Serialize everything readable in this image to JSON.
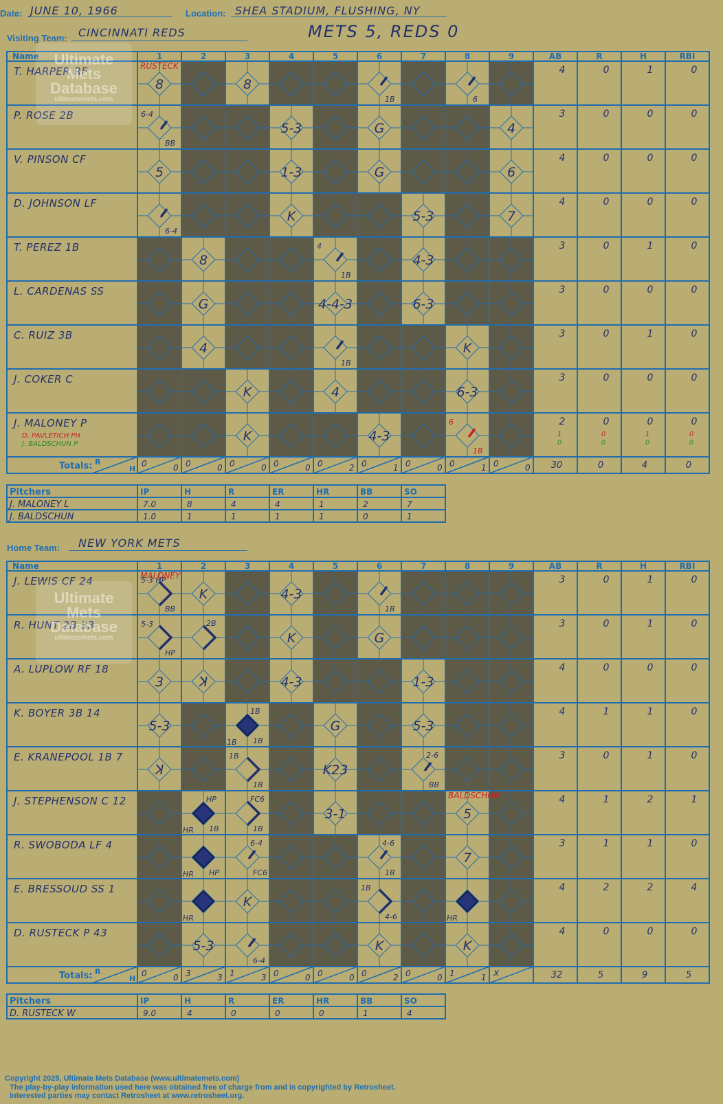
{
  "header": {
    "date_label": "Date:",
    "date": "JUNE 10, 1966",
    "location_label": "Location:",
    "location": "SHEA STADIUM, FLUSHING, NY",
    "visiting_label": "Visiting Team:",
    "visiting_team": "CINCINNATI REDS",
    "home_label": "Home Team:",
    "home_team": "NEW YORK METS",
    "result": "METS 5, REDS 0"
  },
  "grid_headers": {
    "name": "Name",
    "innings": [
      "1",
      "2",
      "3",
      "4",
      "5",
      "6",
      "7",
      "8",
      "9"
    ],
    "ab": "AB",
    "r": "R",
    "h": "H",
    "rbi": "RBI",
    "totals": "Totals:",
    "r_small": "R",
    "h_small": "H"
  },
  "pitcher_headers": {
    "title": "Pitchers",
    "cols": [
      "IP",
      "H",
      "R",
      "ER",
      "HR",
      "BB",
      "SO"
    ]
  },
  "visitors": {
    "players": [
      {
        "name": "T. HARPER RF",
        "stats": [
          "4",
          "0",
          "1",
          "0"
        ]
      },
      {
        "name": "P. ROSE 2B",
        "stats": [
          "3",
          "0",
          "0",
          "0"
        ]
      },
      {
        "name": "V. PINSON CF",
        "stats": [
          "4",
          "0",
          "0",
          "0"
        ]
      },
      {
        "name": "D. JOHNSON LF",
        "stats": [
          "4",
          "0",
          "0",
          "0"
        ]
      },
      {
        "name": "T. PEREZ 1B",
        "stats": [
          "3",
          "0",
          "1",
          "0"
        ]
      },
      {
        "name": "L. CARDENAS SS",
        "stats": [
          "3",
          "0",
          "0",
          "0"
        ]
      },
      {
        "name": "C. RUIZ 3B",
        "stats": [
          "3",
          "0",
          "1",
          "0"
        ]
      },
      {
        "name": "J. COKER C",
        "stats": [
          "3",
          "0",
          "0",
          "0"
        ]
      },
      {
        "name": "J. MALONEY P",
        "stats": [
          "2",
          "0",
          "0",
          "0"
        ],
        "subs": [
          {
            "name": "D. PAVLETICH PH",
            "color": "#c82020",
            "stats": [
              "1",
              "0",
              "1",
              "0"
            ]
          },
          {
            "name": "J. BALDSCHUN P",
            "color": "#2a8a2a",
            "stats": [
              "0",
              "0",
              "0",
              "0"
            ]
          }
        ]
      }
    ],
    "dark": [
      [
        0,
        1,
        0,
        1,
        1,
        0,
        1,
        0,
        1
      ],
      [
        0,
        1,
        1,
        0,
        1,
        0,
        1,
        1,
        0
      ],
      [
        0,
        1,
        1,
        0,
        1,
        0,
        1,
        1,
        0
      ],
      [
        0,
        1,
        1,
        0,
        1,
        1,
        0,
        1,
        0
      ],
      [
        1,
        0,
        1,
        1,
        0,
        1,
        0,
        1,
        1
      ],
      [
        1,
        0,
        1,
        1,
        0,
        1,
        0,
        1,
        1
      ],
      [
        1,
        0,
        1,
        1,
        0,
        1,
        1,
        0,
        1
      ],
      [
        1,
        1,
        0,
        1,
        0,
        1,
        1,
        0,
        1
      ],
      [
        1,
        1,
        0,
        1,
        1,
        0,
        1,
        0,
        1
      ]
    ],
    "plays": [
      {
        "r": 0,
        "c": 0,
        "t": "8"
      },
      {
        "r": 0,
        "c": 2,
        "t": "8"
      },
      {
        "r": 0,
        "c": 5,
        "t": "",
        "slash": true,
        "br": "1B"
      },
      {
        "r": 0,
        "c": 7,
        "t": "",
        "slash": true,
        "br": "6"
      },
      {
        "r": 1,
        "c": 0,
        "t": "",
        "slash": true,
        "tl": "6-4",
        "br": "BB"
      },
      {
        "r": 1,
        "c": 3,
        "t": "5-3"
      },
      {
        "r": 1,
        "c": 5,
        "t": "G"
      },
      {
        "r": 1,
        "c": 8,
        "t": "4"
      },
      {
        "r": 2,
        "c": 0,
        "t": "5"
      },
      {
        "r": 2,
        "c": 3,
        "t": "1-3"
      },
      {
        "r": 2,
        "c": 5,
        "t": "G"
      },
      {
        "r": 2,
        "c": 8,
        "t": "6"
      },
      {
        "r": 3,
        "c": 0,
        "t": "",
        "slash": true,
        "br": "6-4"
      },
      {
        "r": 3,
        "c": 3,
        "t": "K"
      },
      {
        "r": 3,
        "c": 6,
        "t": "5-3"
      },
      {
        "r": 3,
        "c": 8,
        "t": "7"
      },
      {
        "r": 4,
        "c": 1,
        "t": "8"
      },
      {
        "r": 4,
        "c": 4,
        "t": "",
        "slash": true,
        "tl": "4",
        "br": "1B"
      },
      {
        "r": 4,
        "c": 6,
        "t": "4-3"
      },
      {
        "r": 5,
        "c": 1,
        "t": "G"
      },
      {
        "r": 5,
        "c": 4,
        "t": "4-4-3"
      },
      {
        "r": 5,
        "c": 6,
        "t": "6-3"
      },
      {
        "r": 6,
        "c": 1,
        "t": "4"
      },
      {
        "r": 6,
        "c": 4,
        "t": "",
        "slash": true,
        "br": "1B"
      },
      {
        "r": 6,
        "c": 7,
        "t": "K"
      },
      {
        "r": 7,
        "c": 2,
        "t": "K"
      },
      {
        "r": 7,
        "c": 4,
        "t": "4"
      },
      {
        "r": 7,
        "c": 7,
        "t": "6-3"
      },
      {
        "r": 8,
        "c": 2,
        "t": "K"
      },
      {
        "r": 8,
        "c": 5,
        "t": "4-3"
      },
      {
        "r": 8,
        "c": 7,
        "t": "",
        "slash": true,
        "red": true,
        "tl": "6",
        "br": "1B"
      }
    ],
    "notes": [
      {
        "r": 0,
        "c": 0,
        "t": "RUSTECK"
      }
    ],
    "totals": [
      [
        "0",
        "0"
      ],
      [
        "0",
        "0"
      ],
      [
        "0",
        "0"
      ],
      [
        "0",
        "0"
      ],
      [
        "0",
        "2"
      ],
      [
        "0",
        "1"
      ],
      [
        "0",
        "0"
      ],
      [
        "0",
        "1"
      ],
      [
        "0",
        "0"
      ]
    ],
    "totals_stats": [
      "30",
      "0",
      "4",
      "0"
    ],
    "pitchers": [
      {
        "name": "J. MALONEY  L",
        "stats": [
          "7.0",
          "8",
          "4",
          "4",
          "1",
          "2",
          "7"
        ]
      },
      {
        "name": "J. BALDSCHUN",
        "stats": [
          "1.0",
          "1",
          "1",
          "1",
          "1",
          "0",
          "1"
        ]
      }
    ]
  },
  "home": {
    "players": [
      {
        "name": "J. LEWIS CF  24",
        "stats": [
          "3",
          "0",
          "1",
          "0"
        ]
      },
      {
        "name": "R. HUNT 2B  33",
        "stats": [
          "3",
          "0",
          "1",
          "0"
        ]
      },
      {
        "name": "A. LUPLOW RF  18",
        "stats": [
          "4",
          "0",
          "0",
          "0"
        ]
      },
      {
        "name": "K. BOYER 3B  14",
        "stats": [
          "4",
          "1",
          "1",
          "0"
        ]
      },
      {
        "name": "E. KRANEPOOL 1B  7",
        "stats": [
          "3",
          "0",
          "1",
          "0"
        ]
      },
      {
        "name": "J. STEPHENSON C  12",
        "stats": [
          "4",
          "1",
          "2",
          "1"
        ]
      },
      {
        "name": "R. SWOBODA LF  4",
        "stats": [
          "3",
          "1",
          "1",
          "0"
        ]
      },
      {
        "name": "E. BRESSOUD SS  1",
        "stats": [
          "4",
          "2",
          "2",
          "4"
        ]
      },
      {
        "name": "D. RUSTECK P  43",
        "stats": [
          "4",
          "0",
          "0",
          "0"
        ]
      }
    ],
    "dark": [
      [
        0,
        0,
        1,
        0,
        1,
        0,
        1,
        1,
        1
      ],
      [
        0,
        0,
        1,
        0,
        1,
        0,
        1,
        1,
        1
      ],
      [
        0,
        0,
        1,
        0,
        1,
        1,
        0,
        1,
        1
      ],
      [
        0,
        1,
        0,
        1,
        0,
        1,
        0,
        1,
        1
      ],
      [
        0,
        1,
        0,
        1,
        0,
        1,
        0,
        1,
        1
      ],
      [
        1,
        0,
        0,
        1,
        0,
        1,
        1,
        0,
        1
      ],
      [
        1,
        0,
        0,
        1,
        1,
        0,
        1,
        0,
        1
      ],
      [
        1,
        0,
        0,
        1,
        1,
        0,
        1,
        0,
        1
      ],
      [
        1,
        0,
        0,
        1,
        1,
        0,
        1,
        0,
        1
      ]
    ],
    "plays": [
      {
        "r": 0,
        "c": 0,
        "t": "",
        "path": "12",
        "tl": "5-3 HP",
        "br": "BB"
      },
      {
        "r": 0,
        "c": 1,
        "t": "K"
      },
      {
        "r": 0,
        "c": 3,
        "t": "4-3"
      },
      {
        "r": 0,
        "c": 5,
        "t": "",
        "slash": true,
        "br": "1B"
      },
      {
        "r": 1,
        "c": 0,
        "t": "",
        "path": "12",
        "tl": "5-3",
        "br": "HP"
      },
      {
        "r": 1,
        "c": 1,
        "t": "",
        "path": "12",
        "tr": "2B"
      },
      {
        "r": 1,
        "c": 3,
        "t": "K"
      },
      {
        "r": 1,
        "c": 5,
        "t": "G"
      },
      {
        "r": 2,
        "c": 0,
        "t": "3"
      },
      {
        "r": 2,
        "c": 1,
        "t": "ꓘ"
      },
      {
        "r": 2,
        "c": 3,
        "t": "4-3"
      },
      {
        "r": 2,
        "c": 6,
        "t": "1-3"
      },
      {
        "r": 3,
        "c": 0,
        "t": "5-3"
      },
      {
        "r": 3,
        "c": 2,
        "t": "",
        "fill": true,
        "tr": "1B",
        "bl": "1B",
        "br": "1B"
      },
      {
        "r": 3,
        "c": 4,
        "t": "G"
      },
      {
        "r": 3,
        "c": 6,
        "t": "5-3"
      },
      {
        "r": 4,
        "c": 0,
        "t": "ꓘ"
      },
      {
        "r": 4,
        "c": 2,
        "t": "",
        "path": "12",
        "tl": "1B",
        "br": "1B"
      },
      {
        "r": 4,
        "c": 4,
        "t": "K23"
      },
      {
        "r": 4,
        "c": 6,
        "t": "",
        "slash": true,
        "tr": "2-6",
        "br": "BB"
      },
      {
        "r": 5,
        "c": 1,
        "t": "",
        "fill": true,
        "tr": "HP",
        "bl": "HR",
        "br": "1B"
      },
      {
        "r": 5,
        "c": 2,
        "t": "",
        "path": "12",
        "tr": "FC6",
        "br": "1B"
      },
      {
        "r": 5,
        "c": 4,
        "t": "3-1"
      },
      {
        "r": 5,
        "c": 7,
        "t": "5"
      },
      {
        "r": 6,
        "c": 1,
        "t": "",
        "fill": true,
        "bl": "HR",
        "br": "HP"
      },
      {
        "r": 6,
        "c": 2,
        "t": "",
        "slash": true,
        "tr": "6-4",
        "br": "FC6"
      },
      {
        "r": 6,
        "c": 5,
        "t": "",
        "slash": true,
        "tr": "4-6",
        "br": "1B"
      },
      {
        "r": 6,
        "c": 7,
        "t": "7"
      },
      {
        "r": 7,
        "c": 1,
        "t": "",
        "fill": true,
        "bl": "HR"
      },
      {
        "r": 7,
        "c": 2,
        "t": "K"
      },
      {
        "r": 7,
        "c": 5,
        "t": "",
        "path": "12",
        "tl": "1B",
        "br": "4-6"
      },
      {
        "r": 7,
        "c": 7,
        "t": "",
        "fill": true,
        "bl": "HR"
      },
      {
        "r": 8,
        "c": 1,
        "t": "5-3"
      },
      {
        "r": 8,
        "c": 2,
        "t": "",
        "slash": true,
        "br": "6-4"
      },
      {
        "r": 8,
        "c": 5,
        "t": "K"
      },
      {
        "r": 8,
        "c": 7,
        "t": "K"
      }
    ],
    "notes": [
      {
        "r": 0,
        "c": 0,
        "t": "MALONEY"
      },
      {
        "r": 5,
        "c": 7,
        "t": "BALDSCHUN"
      }
    ],
    "totals": [
      [
        "0",
        "0"
      ],
      [
        "3",
        "3"
      ],
      [
        "1",
        "3"
      ],
      [
        "0",
        "0"
      ],
      [
        "0",
        "0"
      ],
      [
        "0",
        "2"
      ],
      [
        "0",
        "0"
      ],
      [
        "1",
        "1"
      ],
      [
        "X",
        ""
      ]
    ],
    "totals_stats": [
      "32",
      "5",
      "9",
      "5"
    ],
    "pitchers": [
      {
        "name": "D. RUSTECK  W",
        "stats": [
          "9.0",
          "4",
          "0",
          "0",
          "0",
          "1",
          "4"
        ]
      }
    ]
  },
  "watermark": {
    "line1": "Ultimate",
    "line2": "Mets",
    "line3": "Database",
    "line4": "ultimatemets.com"
  },
  "footer": {
    "line1": "Copyright 2025, Ultimate Mets Database (www.ultimatemets.com)",
    "line2": "The play-by-play information used here was obtained free of charge from and is copyrighted by Retrosheet.",
    "line3": "Interested parties may contact Retrosheet at www.retrosheet.org."
  },
  "colors": {
    "paper": "#baad74",
    "dark": "#5e5a48",
    "line": "#1f6db0",
    "ink": "#22306b",
    "red": "#c82020",
    "green": "#2a8a2a"
  }
}
